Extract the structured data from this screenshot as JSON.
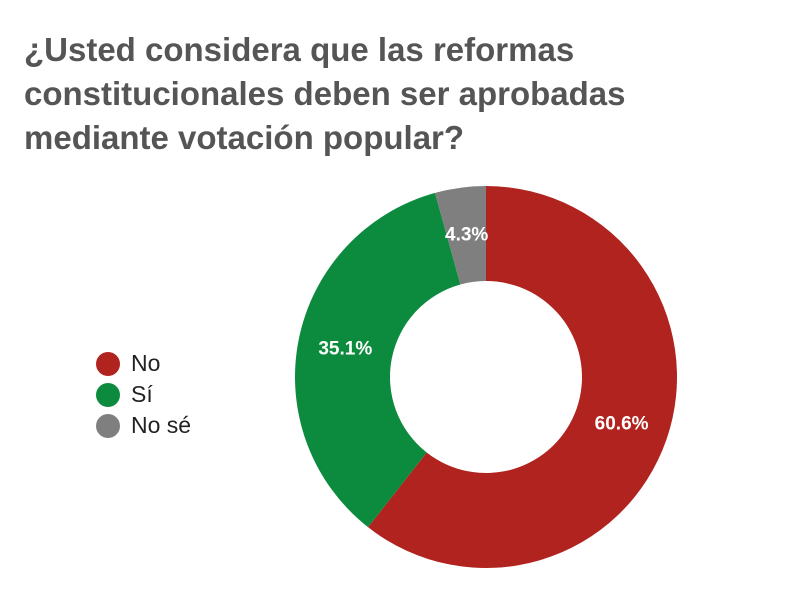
{
  "chart_data": {
    "type": "pie",
    "title": "¿Usted considera que las reformas constitucionales deben ser aprobadas mediante votación popular?",
    "legend_position": "left",
    "slices": [
      {
        "label": "No",
        "value": 60.6,
        "display": "60.6%",
        "color": "#b0231f"
      },
      {
        "label": "Sí",
        "value": 35.1,
        "display": "35.1%",
        "color": "#0c8b3e"
      },
      {
        "label": "No sé",
        "value": 4.3,
        "display": "4.3%",
        "color": "#7f7f7f"
      }
    ]
  }
}
